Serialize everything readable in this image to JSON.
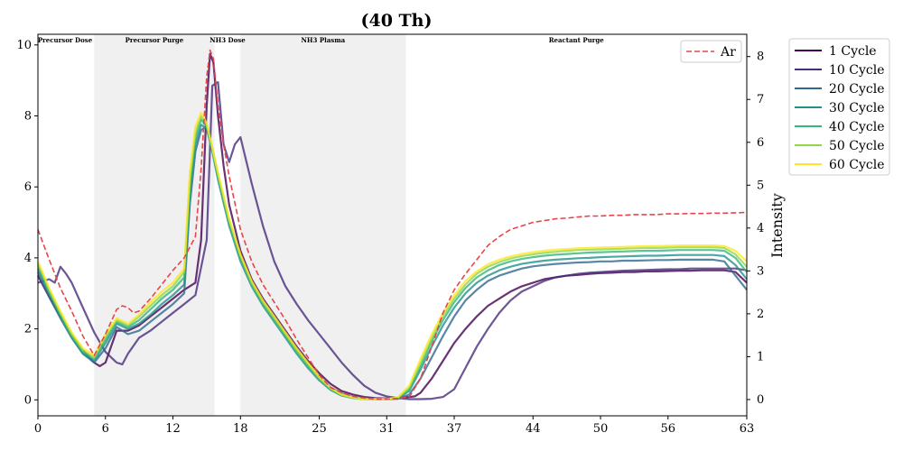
{
  "chart_data": {
    "type": "line",
    "title": "(40 Th)",
    "xlabel": "",
    "ylabel_left": "",
    "ylabel_right": "Intensity",
    "xlim": [
      0,
      63
    ],
    "ylim_left": [
      -0.45,
      10.3
    ],
    "ylim_right": [
      -0.38,
      8.52
    ],
    "x_ticks": [
      0,
      6,
      12,
      18,
      25,
      31,
      37,
      44,
      50,
      56,
      63
    ],
    "y_ticks_left": [
      0,
      2,
      4,
      6,
      8,
      10
    ],
    "y_ticks_right": [
      0,
      1,
      2,
      3,
      4,
      5,
      6,
      7,
      8
    ],
    "grid": false,
    "phases": [
      {
        "label": "Precursor Dose",
        "start": 0,
        "end": 5,
        "shaded": false
      },
      {
        "label": "Precursor Purge",
        "start": 5,
        "end": 15.7,
        "shaded": true
      },
      {
        "label": "NH3 Dose",
        "start": 15.7,
        "end": 18,
        "shaded": false
      },
      {
        "label": "NH3 Plasma",
        "start": 18,
        "end": 32.7,
        "shaded": true
      },
      {
        "label": "Reactant Purge",
        "start": 32.7,
        "end": 63,
        "shaded": false
      }
    ],
    "legend_left": {
      "position": "top-right",
      "entries": [
        {
          "name": "Ar",
          "color": "#e8454a",
          "style": "dashed"
        }
      ]
    },
    "legend_right": {
      "position": "outside-right",
      "entries": [
        {
          "name": "1 Cycle",
          "color": "#440154"
        },
        {
          "name": "10 Cycle",
          "color": "#472c7a"
        },
        {
          "name": "20 Cycle",
          "color": "#31688e"
        },
        {
          "name": "30 Cycle",
          "color": "#21918c"
        },
        {
          "name": "40 Cycle",
          "color": "#35b779"
        },
        {
          "name": "50 Cycle",
          "color": "#90d743"
        },
        {
          "name": "60 Cycle",
          "color": "#fde725"
        }
      ]
    },
    "series": [
      {
        "name": "Ar",
        "axis": "left",
        "color": "#e8454a",
        "style": "dashed",
        "x": [
          0,
          1,
          2,
          3,
          4,
          5,
          6,
          7,
          7.5,
          8,
          8.5,
          9,
          10,
          11,
          12,
          13,
          14,
          14.5,
          15,
          15.3,
          15.6,
          16,
          16.5,
          17,
          18,
          19,
          20,
          21,
          22,
          23,
          24,
          25,
          26,
          27,
          28,
          29,
          30,
          31,
          32,
          33,
          34,
          35,
          36,
          37,
          38,
          39,
          40,
          41,
          42,
          43,
          44,
          45,
          46,
          47,
          48,
          49,
          50,
          51,
          52,
          53,
          54,
          55,
          56,
          57,
          58,
          59,
          60,
          61,
          62,
          63
        ],
        "y": [
          4.8,
          3.95,
          3.15,
          2.5,
          1.8,
          1.25,
          1.85,
          2.55,
          2.65,
          2.6,
          2.45,
          2.5,
          2.85,
          3.25,
          3.65,
          4.0,
          4.6,
          6.5,
          9.1,
          9.85,
          9.6,
          8.3,
          7.2,
          6.3,
          4.8,
          3.9,
          3.25,
          2.75,
          2.25,
          1.7,
          1.2,
          0.7,
          0.35,
          0.2,
          0.1,
          0.05,
          0.02,
          0.02,
          0.04,
          0.08,
          0.6,
          1.5,
          2.45,
          3.1,
          3.55,
          3.95,
          4.35,
          4.6,
          4.8,
          4.9,
          5.0,
          5.05,
          5.1,
          5.12,
          5.15,
          5.18,
          5.18,
          5.2,
          5.2,
          5.22,
          5.22,
          5.22,
          5.24,
          5.24,
          5.25,
          5.25,
          5.26,
          5.26,
          5.27,
          5.28
        ]
      },
      {
        "name": "1 Cycle",
        "axis": "left",
        "color": "#440154",
        "x": [
          0,
          1,
          2,
          3,
          4,
          5,
          5.5,
          6,
          6.5,
          7,
          8,
          9,
          10,
          11,
          12,
          13,
          14,
          14.5,
          15,
          15.3,
          15.6,
          16,
          16.5,
          17,
          18,
          19,
          20,
          21,
          22,
          23,
          24,
          25,
          26,
          27,
          28,
          29,
          30,
          31,
          32,
          33,
          33.5,
          34,
          35,
          36,
          37,
          38,
          39,
          40,
          41,
          42,
          43,
          44,
          45,
          46,
          47,
          48,
          49,
          50,
          51,
          52,
          53,
          54,
          55,
          56,
          57,
          58,
          59,
          60,
          61,
          62,
          63
        ],
        "y": [
          3.5,
          2.9,
          2.35,
          1.85,
          1.4,
          1.05,
          0.95,
          1.05,
          1.5,
          1.95,
          1.95,
          2.1,
          2.35,
          2.6,
          2.85,
          3.1,
          3.3,
          4.5,
          8.3,
          9.75,
          9.5,
          8.0,
          6.6,
          5.5,
          4.2,
          3.4,
          2.85,
          2.4,
          1.95,
          1.5,
          1.1,
          0.75,
          0.45,
          0.25,
          0.15,
          0.08,
          0.05,
          0.04,
          0.05,
          0.08,
          0.1,
          0.2,
          0.6,
          1.1,
          1.6,
          2.0,
          2.35,
          2.65,
          2.85,
          3.05,
          3.2,
          3.3,
          3.4,
          3.45,
          3.5,
          3.52,
          3.55,
          3.57,
          3.58,
          3.6,
          3.6,
          3.62,
          3.62,
          3.63,
          3.64,
          3.64,
          3.65,
          3.65,
          3.65,
          3.6,
          3.3
        ]
      },
      {
        "name": "10 Cycle",
        "axis": "left",
        "color": "#472c7a",
        "x": [
          0,
          1,
          1.5,
          2,
          2.5,
          3,
          4,
          5,
          6,
          7,
          7.5,
          8,
          9,
          10,
          11,
          12,
          13,
          14,
          15,
          15.5,
          16,
          16.5,
          17,
          17.5,
          18,
          19,
          20,
          21,
          22,
          23,
          24,
          25,
          26,
          27,
          28,
          29,
          30,
          31,
          32,
          33,
          34,
          35,
          36,
          37,
          38,
          39,
          40,
          41,
          42,
          43,
          44,
          45,
          46,
          47,
          48,
          49,
          50,
          51,
          52,
          53,
          54,
          55,
          56,
          57,
          58,
          59,
          60,
          61,
          62,
          63
        ],
        "y": [
          3.3,
          3.4,
          3.3,
          3.75,
          3.55,
          3.3,
          2.6,
          1.9,
          1.35,
          1.05,
          1.0,
          1.3,
          1.75,
          1.95,
          2.2,
          2.45,
          2.7,
          2.95,
          4.5,
          8.85,
          8.95,
          7.2,
          6.7,
          7.2,
          7.4,
          6.1,
          4.9,
          3.9,
          3.2,
          2.7,
          2.25,
          1.85,
          1.45,
          1.05,
          0.7,
          0.4,
          0.2,
          0.1,
          0.05,
          0.02,
          0.02,
          0.03,
          0.08,
          0.3,
          0.9,
          1.5,
          2.0,
          2.45,
          2.8,
          3.05,
          3.2,
          3.35,
          3.45,
          3.5,
          3.55,
          3.58,
          3.6,
          3.62,
          3.64,
          3.65,
          3.66,
          3.67,
          3.68,
          3.68,
          3.7,
          3.7,
          3.7,
          3.7,
          3.7,
          3.65
        ]
      },
      {
        "name": "20 Cycle",
        "axis": "left",
        "color": "#31688e",
        "x": [
          0,
          1,
          2,
          3,
          4,
          5,
          6,
          7,
          8,
          9,
          10,
          11,
          12,
          13,
          13.5,
          14,
          14.5,
          15,
          15.5,
          16,
          17,
          18,
          19,
          20,
          21,
          22,
          23,
          24,
          25,
          26,
          27,
          28,
          29,
          30,
          31,
          32,
          33,
          34,
          35,
          36,
          37,
          38,
          39,
          40,
          41,
          42,
          43,
          44,
          45,
          46,
          47,
          48,
          49,
          50,
          51,
          52,
          53,
          54,
          55,
          56,
          57,
          58,
          59,
          60,
          61,
          62,
          63
        ],
        "y": [
          3.6,
          2.9,
          2.3,
          1.75,
          1.3,
          1.05,
          1.45,
          2.05,
          1.85,
          1.95,
          2.2,
          2.45,
          2.7,
          3.0,
          5.5,
          7.0,
          7.6,
          7.7,
          7.1,
          6.3,
          5.0,
          4.0,
          3.3,
          2.75,
          2.3,
          1.85,
          1.4,
          1.0,
          0.65,
          0.35,
          0.18,
          0.08,
          0.03,
          0.02,
          0.02,
          0.03,
          0.15,
          0.6,
          1.2,
          1.8,
          2.35,
          2.8,
          3.1,
          3.35,
          3.5,
          3.6,
          3.7,
          3.76,
          3.8,
          3.83,
          3.85,
          3.87,
          3.88,
          3.9,
          3.9,
          3.92,
          3.92,
          3.93,
          3.94,
          3.94,
          3.95,
          3.95,
          3.95,
          3.95,
          3.9,
          3.5,
          3.1
        ]
      },
      {
        "name": "30 Cycle",
        "axis": "left",
        "color": "#21918c",
        "x": [
          0,
          1,
          2,
          3,
          4,
          5,
          6,
          7,
          8,
          9,
          10,
          11,
          12,
          13,
          13.5,
          14,
          14.5,
          15,
          15.5,
          16,
          17,
          18,
          19,
          20,
          21,
          22,
          23,
          24,
          25,
          26,
          27,
          28,
          29,
          30,
          31,
          32,
          33,
          34,
          35,
          36,
          37,
          38,
          39,
          40,
          41,
          42,
          43,
          44,
          45,
          46,
          47,
          48,
          49,
          50,
          51,
          52,
          53,
          54,
          55,
          56,
          57,
          58,
          59,
          60,
          61,
          62,
          63
        ],
        "y": [
          3.7,
          3.0,
          2.35,
          1.75,
          1.3,
          1.1,
          1.6,
          2.15,
          2.0,
          2.15,
          2.4,
          2.7,
          2.95,
          3.25,
          5.8,
          7.2,
          7.75,
          7.65,
          7.0,
          6.2,
          4.9,
          3.9,
          3.2,
          2.65,
          2.2,
          1.75,
          1.3,
          0.9,
          0.55,
          0.28,
          0.12,
          0.05,
          0.02,
          0.02,
          0.02,
          0.04,
          0.25,
          0.85,
          1.5,
          2.1,
          2.6,
          3.0,
          3.3,
          3.5,
          3.65,
          3.75,
          3.83,
          3.88,
          3.92,
          3.95,
          3.97,
          3.99,
          4.0,
          4.02,
          4.03,
          4.04,
          4.05,
          4.06,
          4.06,
          4.07,
          4.08,
          4.08,
          4.08,
          4.08,
          4.05,
          3.8,
          3.4
        ]
      },
      {
        "name": "40 Cycle",
        "axis": "left",
        "color": "#35b779",
        "x": [
          0,
          1,
          2,
          3,
          4,
          5,
          6,
          7,
          8,
          9,
          10,
          11,
          12,
          13,
          13.5,
          14,
          14.5,
          15,
          15.5,
          16,
          17,
          18,
          19,
          20,
          21,
          22,
          23,
          24,
          25,
          26,
          27,
          28,
          29,
          30,
          31,
          32,
          33,
          34,
          35,
          36,
          37,
          38,
          39,
          40,
          41,
          42,
          43,
          44,
          45,
          46,
          47,
          48,
          49,
          50,
          51,
          52,
          53,
          54,
          55,
          56,
          57,
          58,
          59,
          60,
          61,
          62,
          63
        ],
        "y": [
          3.8,
          3.05,
          2.4,
          1.8,
          1.35,
          1.15,
          1.7,
          2.2,
          2.05,
          2.25,
          2.55,
          2.85,
          3.1,
          3.45,
          6.0,
          7.4,
          7.9,
          7.7,
          7.05,
          6.3,
          5.0,
          4.0,
          3.25,
          2.7,
          2.25,
          1.8,
          1.35,
          0.95,
          0.6,
          0.3,
          0.13,
          0.06,
          0.02,
          0.02,
          0.02,
          0.05,
          0.3,
          0.95,
          1.65,
          2.25,
          2.75,
          3.15,
          3.45,
          3.65,
          3.8,
          3.9,
          3.97,
          4.02,
          4.06,
          4.09,
          4.11,
          4.13,
          4.15,
          4.16,
          4.17,
          4.18,
          4.19,
          4.2,
          4.2,
          4.21,
          4.22,
          4.22,
          4.22,
          4.22,
          4.2,
          4.0,
          3.6
        ]
      },
      {
        "name": "50 Cycle",
        "axis": "left",
        "color": "#90d743",
        "x": [
          0,
          1,
          2,
          3,
          4,
          5,
          6,
          7,
          8,
          9,
          10,
          11,
          12,
          13,
          13.5,
          14,
          14.5,
          15,
          15.5,
          16,
          17,
          18,
          19,
          20,
          21,
          22,
          23,
          24,
          25,
          26,
          27,
          28,
          29,
          30,
          31,
          32,
          33,
          34,
          35,
          36,
          37,
          38,
          39,
          40,
          41,
          42,
          43,
          44,
          45,
          46,
          47,
          48,
          49,
          50,
          51,
          52,
          53,
          54,
          55,
          56,
          57,
          58,
          59,
          60,
          61,
          62,
          63
        ],
        "y": [
          3.85,
          3.1,
          2.45,
          1.85,
          1.4,
          1.2,
          1.8,
          2.25,
          2.1,
          2.35,
          2.65,
          2.95,
          3.2,
          3.6,
          6.2,
          7.55,
          8.0,
          7.75,
          7.1,
          6.35,
          5.05,
          4.05,
          3.3,
          2.75,
          2.3,
          1.85,
          1.4,
          1.0,
          0.62,
          0.32,
          0.14,
          0.06,
          0.02,
          0.02,
          0.02,
          0.06,
          0.35,
          1.05,
          1.75,
          2.35,
          2.85,
          3.25,
          3.55,
          3.75,
          3.88,
          3.98,
          4.05,
          4.1,
          4.14,
          4.17,
          4.2,
          4.22,
          4.23,
          4.24,
          4.25,
          4.26,
          4.27,
          4.28,
          4.28,
          4.29,
          4.3,
          4.3,
          4.3,
          4.3,
          4.28,
          4.1,
          3.75
        ]
      },
      {
        "name": "60 Cycle",
        "axis": "left",
        "color": "#fde725",
        "x": [
          0,
          1,
          2,
          3,
          4,
          5,
          6,
          7,
          8,
          9,
          10,
          11,
          12,
          13,
          13.5,
          14,
          14.5,
          15,
          15.5,
          16,
          17,
          18,
          19,
          20,
          21,
          22,
          23,
          24,
          25,
          26,
          27,
          28,
          29,
          30,
          31,
          32,
          33,
          34,
          35,
          36,
          37,
          38,
          39,
          40,
          41,
          42,
          43,
          44,
          45,
          46,
          47,
          48,
          49,
          50,
          51,
          52,
          53,
          54,
          55,
          56,
          57,
          58,
          59,
          60,
          61,
          62,
          63
        ],
        "y": [
          3.9,
          3.15,
          2.5,
          1.9,
          1.45,
          1.25,
          1.85,
          2.3,
          2.15,
          2.4,
          2.75,
          3.05,
          3.3,
          3.7,
          6.4,
          7.7,
          8.1,
          7.8,
          7.1,
          6.4,
          5.1,
          4.1,
          3.35,
          2.8,
          2.35,
          1.9,
          1.45,
          1.05,
          0.65,
          0.34,
          0.15,
          0.07,
          0.02,
          0.02,
          0.02,
          0.07,
          0.4,
          1.15,
          1.85,
          2.45,
          2.95,
          3.35,
          3.62,
          3.82,
          3.95,
          4.04,
          4.11,
          4.16,
          4.2,
          4.23,
          4.25,
          4.27,
          4.28,
          4.29,
          4.3,
          4.31,
          4.32,
          4.33,
          4.33,
          4.34,
          4.35,
          4.35,
          4.35,
          4.35,
          4.33,
          4.2,
          3.9
        ]
      }
    ]
  }
}
